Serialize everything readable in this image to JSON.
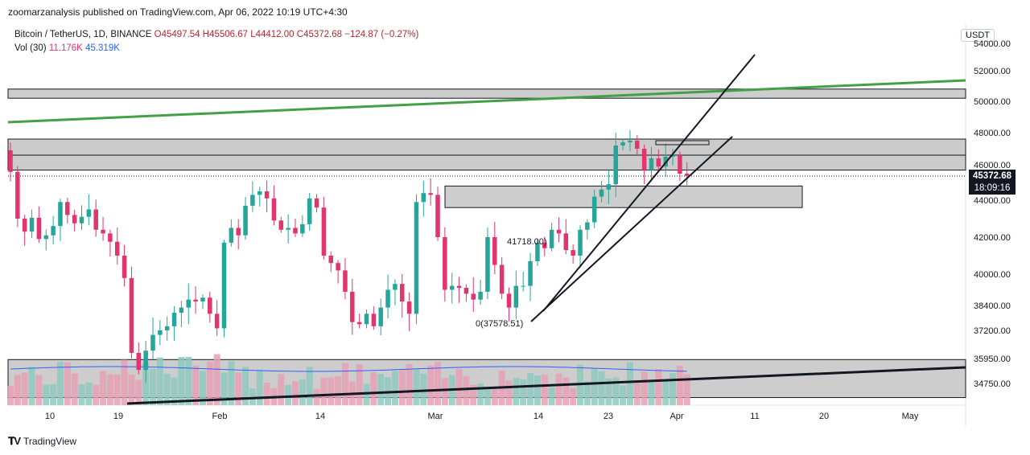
{
  "header": {
    "published_by": "zoomarzanalysis published on TradingView.com, Apr 06, 2022 10:19 UTC+4:30"
  },
  "legend": {
    "symbol": "Bitcoin / TetherUS, 1D, BINANCE",
    "ohlc": "O45497.54  H45506.67  L44412.00  C45372.68  −124.87 (−0.27%)",
    "vol_label": "Vol (30)",
    "vol_value": "11.176K",
    "vol_ma": "45.319K"
  },
  "currency_button": "USDT",
  "last_price": "45372.68",
  "countdown": "18:09:16",
  "footer": {
    "brand": "TradingView",
    "logo": "tv-logo-icon"
  },
  "colors": {
    "up": "#26a69a",
    "down": "#e0356d",
    "vol_up": "#8fc9bf",
    "vol_down": "#e5a0b5",
    "trendline_green": "#43a047",
    "zone_gray": "#c8c8c8",
    "vol_ma": "#2962ff"
  },
  "annotations": {
    "high_label": "41718.00)",
    "low_label": "0(37578.51)"
  },
  "chart_data": {
    "type": "candlestick",
    "title": "Bitcoin / TetherUS, 1D, BINANCE",
    "y_axis": {
      "ticks": [
        "54000.00",
        "52000.00",
        "50000.00",
        "48000.00",
        "46000.00",
        "44000.00",
        "42000.00",
        "40000.00",
        "38400.00",
        "37200.00",
        "35950.00",
        "34750.00"
      ]
    },
    "x_axis": {
      "ticks": [
        "10",
        "19",
        "Feb",
        "14",
        "Mar",
        "14",
        "23",
        "Apr",
        "11",
        "20",
        "May"
      ]
    },
    "candles_close_approx": [
      45600,
      43000,
      42300,
      43050,
      41900,
      42100,
      42600,
      43900,
      43200,
      42750,
      43100,
      43500,
      42400,
      42200,
      41750,
      41000,
      39800,
      36200,
      35400,
      36300,
      37000,
      37200,
      37400,
      38050,
      38300,
      38700,
      38600,
      38800,
      38000,
      37300,
      41700,
      42500,
      42100,
      43700,
      44300,
      44500,
      44100,
      42900,
      42400,
      42500,
      42200,
      42700,
      44100,
      43600,
      41000,
      40600,
      40200,
      39100,
      37600,
      37500,
      38000,
      37400,
      38300,
      39200,
      39500,
      38600,
      38000,
      43900,
      44400,
      44300,
      42000,
      39200,
      39400,
      39300,
      39000,
      38700,
      39100,
      42000,
      40500,
      39000,
      38300,
      39400,
      39400,
      40700,
      41700,
      41400,
      42400,
      42200,
      41300,
      41000,
      42400,
      42800,
      44200,
      44600,
      44900,
      47200,
      47400,
      47500,
      47000,
      45700,
      46400,
      45900,
      46500,
      46600,
      45500,
      45373
    ],
    "zones": [
      {
        "name": "upper-resistance-zone",
        "from": 50200,
        "to": 50800
      },
      {
        "name": "resistance-zone",
        "from": 45700,
        "to": 47600
      },
      {
        "name": "support-zone",
        "from": 43600,
        "to": 44800
      },
      {
        "name": "volume-base-zone",
        "from": 34100,
        "to": 35900
      }
    ],
    "volume_ma_label": "Vol (30)"
  }
}
